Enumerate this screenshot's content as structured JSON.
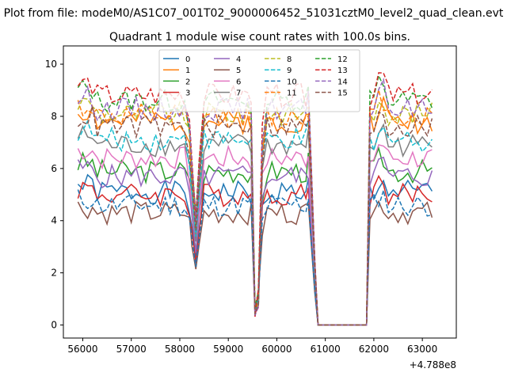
{
  "figure": {
    "suptitle": "Plot from file: modeM0/AS1C07_001T02_9000006452_51031cztM0_level2_quad_clean.evt"
  },
  "chart_data": {
    "type": "line",
    "title": "Quadrant 1 module wise count rates with 100.0s bins.",
    "xlabel": "",
    "ylabel": "",
    "x_offset_label": "+4.788e8",
    "x_offset": 478800000,
    "x_range": [
      55600,
      63700
    ],
    "ylim": [
      -0.5,
      10.7
    ],
    "x_ticks": [
      56000,
      57000,
      58000,
      59000,
      60000,
      61000,
      62000,
      63000
    ],
    "y_ticks": [
      0,
      2,
      4,
      6,
      8,
      10
    ],
    "legend": {
      "placement": "upper center",
      "columns": 4
    },
    "x_points": [
      55900,
      56000,
      56100,
      56200,
      56300,
      56400,
      56500,
      56600,
      56700,
      56800,
      56900,
      57000,
      57100,
      57200,
      57300,
      57400,
      57500,
      57600,
      57700,
      57800,
      57900,
      58000,
      58100,
      58200,
      58250,
      58330,
      58400,
      58500,
      58600,
      58700,
      58800,
      58900,
      59000,
      59100,
      59200,
      59300,
      59400,
      59470,
      59550,
      59620,
      59700,
      59800,
      59900,
      60000,
      60100,
      60200,
      60300,
      60400,
      60500,
      60600,
      60650,
      60780,
      60850,
      61000,
      61200,
      61400,
      61600,
      61850,
      61920,
      62000,
      62100,
      62200,
      62300,
      62400,
      62500,
      62600,
      62700,
      62800,
      62900,
      63000,
      63100,
      63200
    ],
    "series": [
      {
        "name": "0",
        "color": "#1f77b4",
        "dash": "solid",
        "base": 5.1,
        "values": []
      },
      {
        "name": "1",
        "color": "#ff7f0e",
        "dash": "solid",
        "base": 7.8,
        "values": []
      },
      {
        "name": "2",
        "color": "#2ca02c",
        "dash": "solid",
        "base": 5.9,
        "values": []
      },
      {
        "name": "3",
        "color": "#d62728",
        "dash": "solid",
        "base": 5.0,
        "values": []
      },
      {
        "name": "4",
        "color": "#9467bd",
        "dash": "solid",
        "base": 5.7,
        "values": []
      },
      {
        "name": "5",
        "color": "#8c564b",
        "dash": "solid",
        "base": 4.3,
        "values": []
      },
      {
        "name": "6",
        "color": "#e377c2",
        "dash": "solid",
        "base": 6.4,
        "values": []
      },
      {
        "name": "7",
        "color": "#7f7f7f",
        "dash": "solid",
        "base": 6.9,
        "values": []
      },
      {
        "name": "8",
        "color": "#bcbd22",
        "dash": "dashed",
        "base": 8.1,
        "values": []
      },
      {
        "name": "9",
        "color": "#17becf",
        "dash": "dashed",
        "base": 7.1,
        "values": []
      },
      {
        "name": "10",
        "color": "#1f77b4",
        "dash": "dashed",
        "base": 4.6,
        "values": []
      },
      {
        "name": "11",
        "color": "#ff7f0e",
        "dash": "dashed",
        "base": 8.0,
        "values": []
      },
      {
        "name": "12",
        "color": "#2ca02c",
        "dash": "dashed",
        "base": 8.6,
        "values": []
      },
      {
        "name": "13",
        "color": "#d62728",
        "dash": "dashed",
        "base": 8.8,
        "values": []
      },
      {
        "name": "14",
        "color": "#9467bd",
        "dash": "dashed",
        "base": 8.3,
        "values": []
      },
      {
        "name": "15",
        "color": "#8c564b",
        "dash": "dashed",
        "base": 7.6,
        "values": []
      }
    ]
  }
}
